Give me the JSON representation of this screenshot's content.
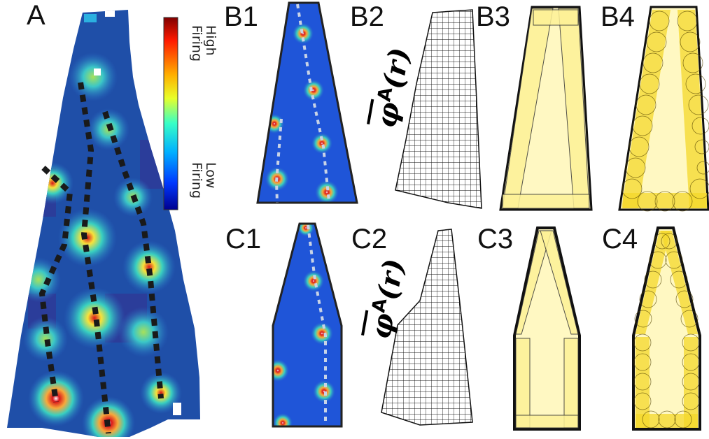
{
  "panels": {
    "A": "A",
    "B1": "B1",
    "B2": "B2",
    "B3": "B3",
    "B4": "B4",
    "C1": "C1",
    "C2": "C2",
    "C3": "C3",
    "C4": "C4"
  },
  "colorbar": {
    "high_line1": "High",
    "high_line2": "Firing",
    "low_line1": "Low",
    "low_line2": "Firing"
  },
  "phi_label": {
    "symbol": "φ",
    "superscript": "A",
    "argument": "(r)"
  },
  "colors": {
    "background_field": "#1f4fa8",
    "low": "#0a1a8c",
    "mid": "#2fd1c8",
    "high_a": "#f7e23b",
    "high_b": "#d9151b",
    "trajectory_dark": "#1a1a1a",
    "trajectory_light": "#c8d3e6",
    "template_fill": "#fff6a8",
    "template_stroke": "#111111"
  }
}
